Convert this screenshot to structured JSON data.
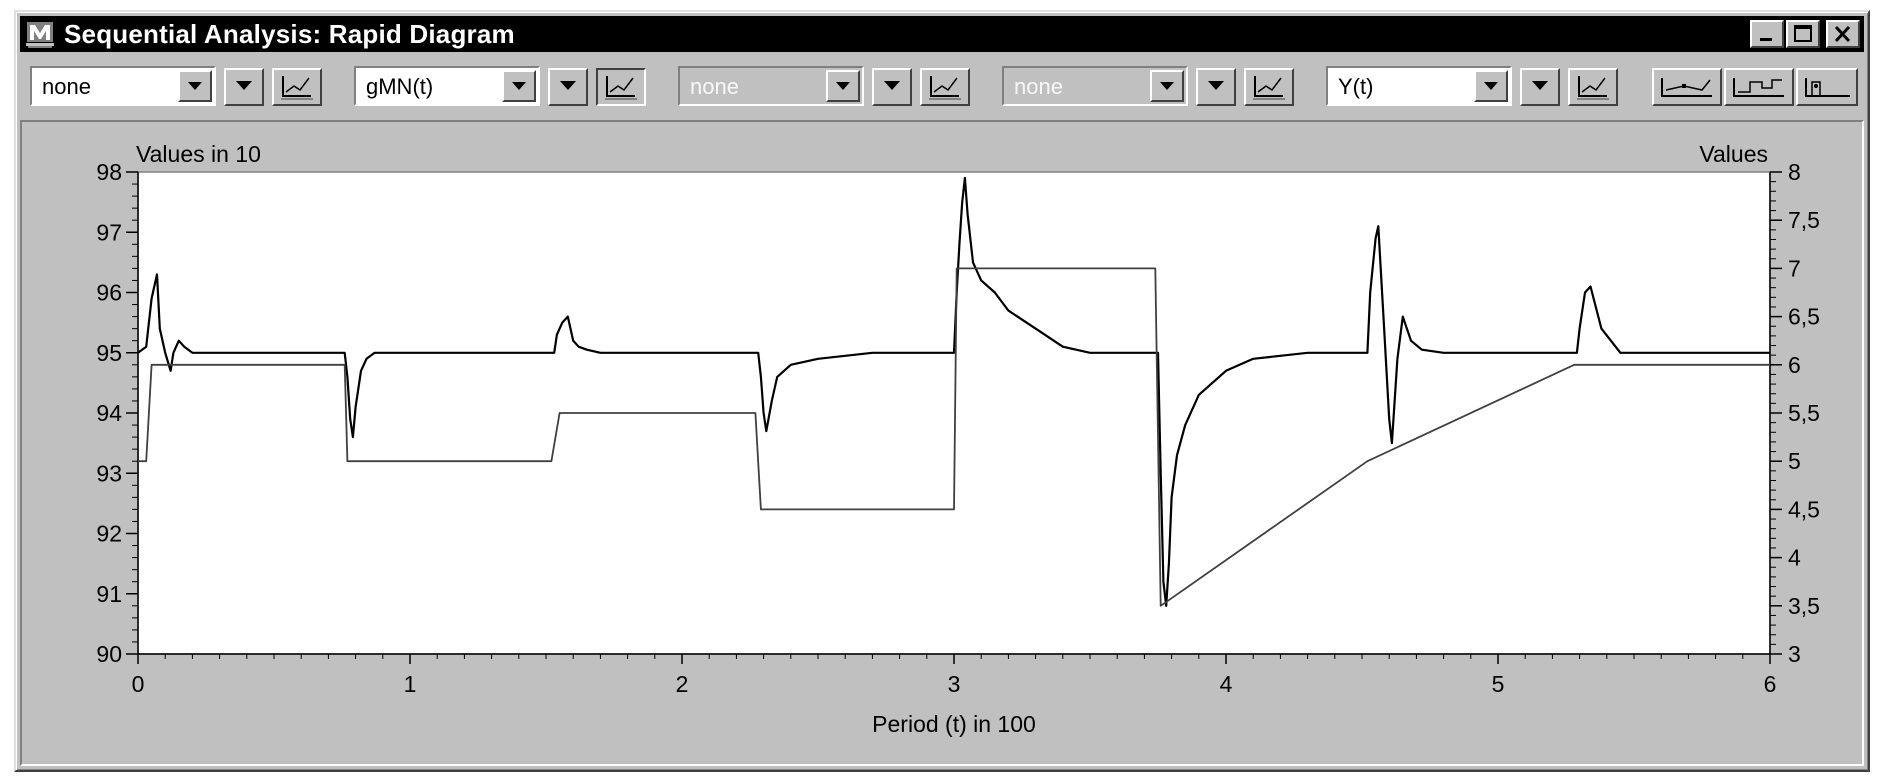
{
  "window": {
    "title": "Sequential Analysis: Rapid Diagram",
    "app_icon": "m-logo-icon",
    "controls": [
      "minimize-icon",
      "maximize-icon",
      "close-icon"
    ]
  },
  "toolbar": {
    "channels": [
      {
        "value": "none",
        "enabled": true,
        "chart_button_pressed": false
      },
      {
        "value": "gMN(t)",
        "enabled": true,
        "chart_button_pressed": true
      },
      {
        "value": "none",
        "enabled": false,
        "chart_button_pressed": false
      },
      {
        "value": "none",
        "enabled": false,
        "chart_button_pressed": false
      },
      {
        "value": "Y(t)",
        "enabled": true,
        "chart_button_pressed": false
      }
    ],
    "view_buttons": [
      "line-view-icon",
      "step-view-icon",
      "bar-view-icon"
    ]
  },
  "chart_data": {
    "type": "line",
    "left_axis_title": "Values in 10",
    "right_axis_title": "Values",
    "xlabel": "Period (t) in 100",
    "xlim": [
      0,
      6
    ],
    "ylim_left": [
      90,
      98
    ],
    "ylim_right": [
      3,
      8
    ],
    "x_ticks": [
      "0",
      "1",
      "2",
      "3",
      "4",
      "5",
      "6"
    ],
    "left_ticks": [
      "90",
      "91",
      "92",
      "93",
      "94",
      "95",
      "96",
      "97",
      "98"
    ],
    "right_ticks": [
      "3",
      "3,5",
      "4",
      "4,5",
      "5",
      "5,5",
      "6",
      "6,5",
      "7",
      "7,5",
      "8"
    ],
    "series": [
      {
        "axis": "left",
        "color": "#000000",
        "x": [
          0,
          0.03,
          0.05,
          0.07,
          0.08,
          0.1,
          0.12,
          0.13,
          0.15,
          0.17,
          0.2,
          0.25,
          0.3,
          0.35,
          0.4,
          0.5,
          0.6,
          0.7,
          0.76,
          0.77,
          0.78,
          0.79,
          0.8,
          0.82,
          0.84,
          0.87,
          0.9,
          0.95,
          1.0,
          1.2,
          1.4,
          1.53,
          1.54,
          1.56,
          1.58,
          1.6,
          1.62,
          1.65,
          1.7,
          1.8,
          2.0,
          2.2,
          2.28,
          2.29,
          2.3,
          2.31,
          2.33,
          2.35,
          2.4,
          2.5,
          2.6,
          2.7,
          2.8,
          2.9,
          3.0,
          3.01,
          3.02,
          3.03,
          3.04,
          3.05,
          3.07,
          3.1,
          3.15,
          3.2,
          3.3,
          3.4,
          3.5,
          3.6,
          3.7,
          3.75,
          3.76,
          3.77,
          3.78,
          3.79,
          3.8,
          3.82,
          3.85,
          3.9,
          4.0,
          4.1,
          4.2,
          4.3,
          4.4,
          4.52,
          4.53,
          4.55,
          4.56,
          4.58,
          4.6,
          4.61,
          4.63,
          4.65,
          4.68,
          4.72,
          4.8,
          4.9,
          5.0,
          5.1,
          5.2,
          5.29,
          5.3,
          5.32,
          5.34,
          5.38,
          5.45,
          5.55,
          5.65,
          5.8,
          6.0
        ],
        "y": [
          95.0,
          95.1,
          95.9,
          96.3,
          95.4,
          95.0,
          94.7,
          95.0,
          95.2,
          95.1,
          95.0,
          95.0,
          95.0,
          95.0,
          95.0,
          95.0,
          95.0,
          95.0,
          95.0,
          94.6,
          93.9,
          93.6,
          94.1,
          94.7,
          94.9,
          95.0,
          95.0,
          95.0,
          95.0,
          95.0,
          95.0,
          95.0,
          95.3,
          95.5,
          95.6,
          95.2,
          95.1,
          95.05,
          95.0,
          95.0,
          95.0,
          95.0,
          95.0,
          94.6,
          94.0,
          93.7,
          94.2,
          94.6,
          94.8,
          94.9,
          94.95,
          95.0,
          95.0,
          95.0,
          95.0,
          96.0,
          96.8,
          97.5,
          97.9,
          97.3,
          96.5,
          96.2,
          96.0,
          95.7,
          95.4,
          95.1,
          95.0,
          95.0,
          95.0,
          95.0,
          93.0,
          91.2,
          90.8,
          91.5,
          92.6,
          93.3,
          93.8,
          94.3,
          94.7,
          94.9,
          94.95,
          95.0,
          95.0,
          95.0,
          96.0,
          96.9,
          97.1,
          95.5,
          93.9,
          93.5,
          94.9,
          95.6,
          95.2,
          95.05,
          95.0,
          95.0,
          95.0,
          95.0,
          95.0,
          95.0,
          95.4,
          96.0,
          96.1,
          95.4,
          95.0,
          95.0,
          95.0,
          95.0,
          95.0
        ]
      },
      {
        "axis": "right",
        "color": "#404040",
        "x": [
          0,
          0.03,
          0.05,
          0.76,
          0.77,
          1.52,
          1.55,
          2.27,
          2.29,
          3.0,
          3.01,
          3.74,
          3.76,
          4.52,
          5.28,
          6.0
        ],
        "y": [
          5.0,
          5.0,
          6.0,
          6.0,
          5.0,
          5.0,
          5.5,
          5.5,
          4.5,
          4.5,
          7.0,
          7.0,
          3.5,
          5.0,
          6.0,
          6.0
        ]
      }
    ]
  }
}
